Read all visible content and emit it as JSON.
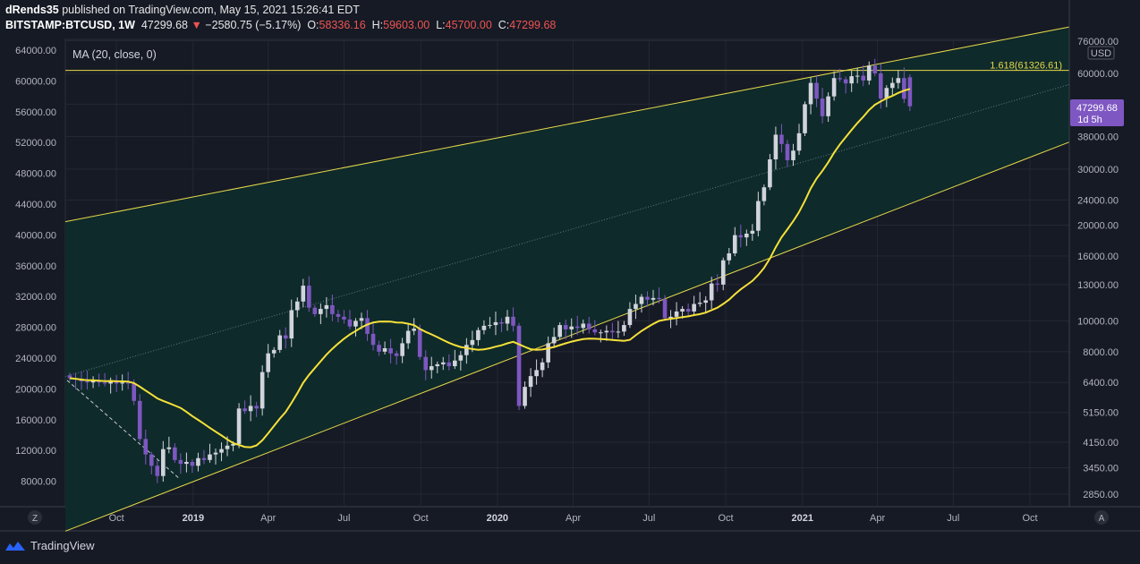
{
  "header": {
    "author": "dRends35",
    "published_text": "published on TradingView.com, May 15, 2021 15:26:41 EDT",
    "symbol": "BITSTAMP:BTCUSD, 1W",
    "last": "47299.68",
    "change_arrow": "▼",
    "change": "−2580.75 (−5.17%)",
    "o_label": "O:",
    "o_value": "58336.16",
    "h_label": "H:",
    "h_value": "59603.00",
    "l_label": "L:",
    "l_value": "45700.00",
    "c_label": "C:",
    "c_value": "47299.68"
  },
  "indicator": {
    "label": "MA (20, close, 0)"
  },
  "price_tag": {
    "price": "47299.68",
    "countdown": "1d 5h"
  },
  "fib_label": "1.618(61326.61)",
  "currency": "USD",
  "scale_buttons": {
    "left": "Z",
    "right": "A"
  },
  "footer": {
    "brand": "TradingView"
  },
  "colors": {
    "background": "#161a25",
    "channel_fill": "#0f2a2a",
    "channel_line": "#e5d84a",
    "ma_line": "#f5e13a",
    "candle_up": "#d1d4dc",
    "candle_down": "#7e57c2",
    "tag_bg": "#7e57c2"
  },
  "chart_data": {
    "type": "candlestick",
    "timeframe": "1W",
    "x_tick_labels": [
      "Oct",
      "2019",
      "Apr",
      "Jul",
      "Oct",
      "2020",
      "Apr",
      "Jul",
      "Oct",
      "2021",
      "Apr",
      "Jul",
      "Oct"
    ],
    "x_tick_bold": [
      false,
      true,
      false,
      false,
      false,
      true,
      false,
      false,
      false,
      true,
      false,
      false,
      false
    ],
    "x_tick_dates": [
      "2018-10-01",
      "2019-01-01",
      "2019-04-01",
      "2019-07-01",
      "2019-10-01",
      "2020-01-01",
      "2020-04-01",
      "2020-07-01",
      "2020-10-01",
      "2021-01-01",
      "2021-04-01",
      "2021-07-01",
      "2021-10-01"
    ],
    "left_axis_ticks": [
      64000,
      60000,
      56000,
      52000,
      48000,
      44000,
      40000,
      36000,
      32000,
      28000,
      24000,
      20000,
      16000,
      12000,
      8000
    ],
    "right_axis_ticks": [
      76000,
      60000,
      48000,
      38000,
      30000,
      24000,
      20000,
      16000,
      13000,
      10000,
      8000,
      6400,
      5150,
      4150,
      3450,
      2850
    ],
    "right_axis_scale": "log",
    "fib_level": 61326.61,
    "ma_period": 20,
    "candles_close_weekly": [
      6600,
      6550,
      6450,
      6400,
      6500,
      6400,
      6350,
      6500,
      6350,
      6400,
      6350,
      5600,
      4250,
      3800,
      3500,
      3250,
      3950,
      4000,
      3650,
      3550,
      3600,
      3500,
      3700,
      3650,
      3800,
      3850,
      3950,
      4050,
      4100,
      5300,
      5200,
      5400,
      5300,
      6900,
      7900,
      8100,
      9000,
      8800,
      10800,
      11500,
      12900,
      11000,
      10500,
      10900,
      11200,
      10500,
      10300,
      10100,
      9600,
      10000,
      10200,
      9100,
      8400,
      8000,
      8200,
      7900,
      7750,
      8500,
      9300,
      9450,
      7700,
      7000,
      7200,
      7300,
      7400,
      7200,
      7500,
      7800,
      8400,
      8700,
      9350,
      9650,
      9700,
      9900,
      9800,
      10300,
      9650,
      5400,
      6200,
      6700,
      7000,
      7400,
      8500,
      8900,
      9700,
      9400,
      9600,
      9500,
      9800,
      9400,
      9200,
      9200,
      9300,
      9200,
      9250,
      9700,
      10900,
      11300,
      11900,
      11650,
      11800,
      11700,
      10200,
      10300,
      10700,
      10900,
      10700,
      11300,
      11400,
      11600,
      13100,
      13000,
      15500,
      16300,
      18600,
      18300,
      18800,
      19200,
      23800,
      26300,
      32200,
      38500,
      36000,
      32000,
      34300,
      38900,
      48000,
      56000,
      50000,
      44000,
      50800,
      58000,
      57500,
      55800,
      58800,
      59000,
      57000,
      63500,
      60000,
      50000,
      54000,
      56000,
      58000,
      49900,
      47300
    ],
    "candles_first_close": 6600,
    "last_close": 47299.68
  }
}
